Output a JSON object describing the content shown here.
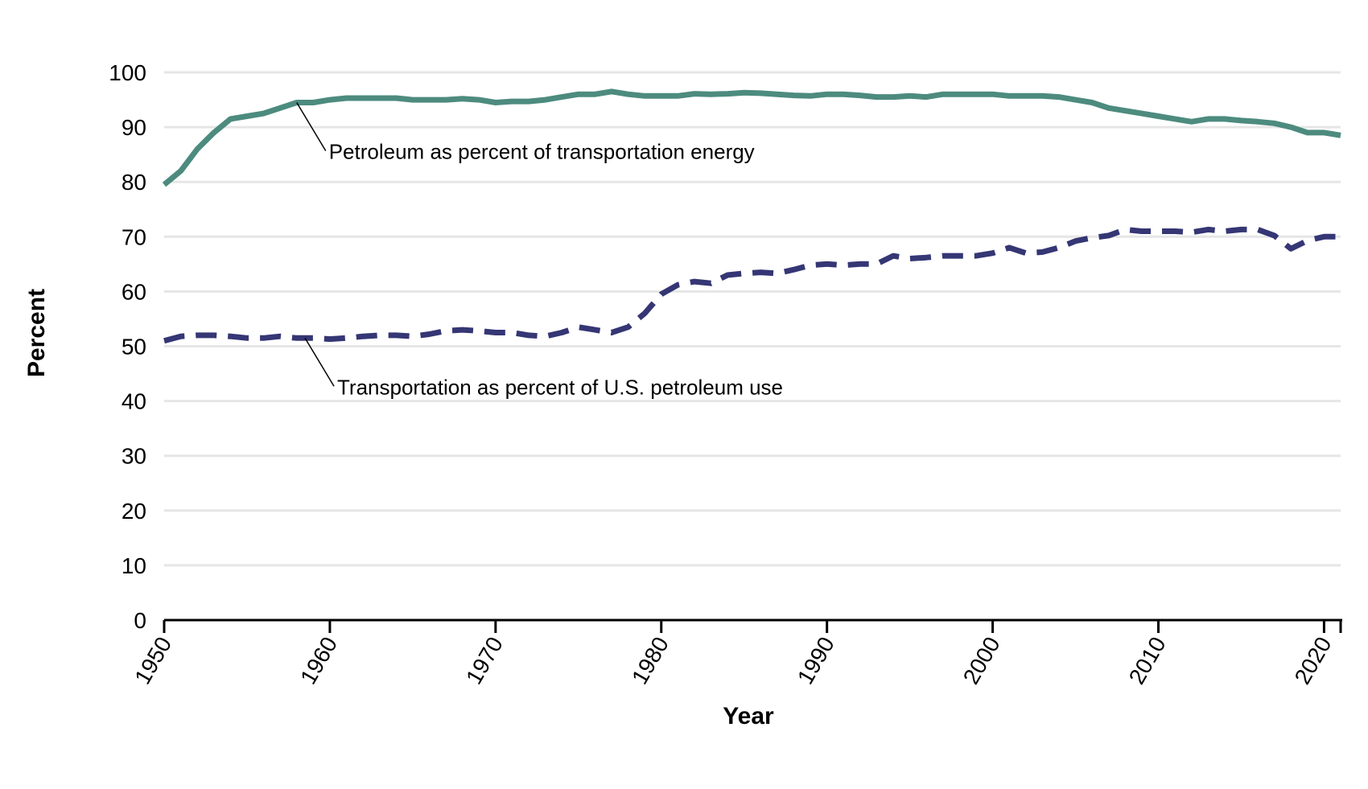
{
  "chart_data": {
    "type": "line",
    "title": "",
    "xlabel": "Year",
    "ylabel": "Percent",
    "xlim": [
      1950,
      2021
    ],
    "ylim": [
      0,
      100
    ],
    "x_ticks": [
      1950,
      1960,
      1970,
      1980,
      1990,
      2000,
      2010,
      2020
    ],
    "y_ticks": [
      0,
      10,
      20,
      30,
      40,
      50,
      60,
      70,
      80,
      90,
      100
    ],
    "grid": "horizontal",
    "series": [
      {
        "name": "Petroleum as percent of transportation energy",
        "color": "#4d8b7f",
        "style": "solid",
        "x": [
          1950,
          1951,
          1952,
          1953,
          1954,
          1955,
          1956,
          1957,
          1958,
          1959,
          1960,
          1961,
          1962,
          1963,
          1964,
          1965,
          1966,
          1967,
          1968,
          1969,
          1970,
          1971,
          1972,
          1973,
          1974,
          1975,
          1976,
          1977,
          1978,
          1979,
          1980,
          1981,
          1982,
          1983,
          1984,
          1985,
          1986,
          1987,
          1988,
          1989,
          1990,
          1991,
          1992,
          1993,
          1994,
          1995,
          1996,
          1997,
          1998,
          1999,
          2000,
          2001,
          2002,
          2003,
          2004,
          2005,
          2006,
          2007,
          2008,
          2009,
          2010,
          2011,
          2012,
          2013,
          2014,
          2015,
          2016,
          2017,
          2018,
          2019,
          2020,
          2021
        ],
        "y": [
          79.5,
          82,
          86,
          89,
          91.5,
          92,
          92.5,
          93.5,
          94.5,
          94.5,
          95,
          95.3,
          95.3,
          95.3,
          95.3,
          95,
          95,
          95,
          95.2,
          95,
          94.5,
          94.7,
          94.7,
          95,
          95.5,
          96,
          96,
          96.5,
          96,
          95.7,
          95.7,
          95.7,
          96.1,
          96,
          96.1,
          96.3,
          96.2,
          96,
          95.8,
          95.7,
          96,
          96,
          95.8,
          95.5,
          95.5,
          95.7,
          95.5,
          96,
          96,
          96,
          96,
          95.7,
          95.7,
          95.7,
          95.5,
          95,
          94.5,
          93.5,
          93,
          92.5,
          92,
          91.5,
          91,
          91.5,
          91.5,
          91.2,
          91,
          90.7,
          90,
          89,
          89,
          88.5
        ]
      },
      {
        "name": "Transportation as percent of U.S. petroleum use",
        "color": "#353674",
        "style": "dashed",
        "x": [
          1950,
          1951,
          1952,
          1953,
          1954,
          1955,
          1956,
          1957,
          1958,
          1959,
          1960,
          1961,
          1962,
          1963,
          1964,
          1965,
          1966,
          1967,
          1968,
          1969,
          1970,
          1971,
          1972,
          1973,
          1974,
          1975,
          1976,
          1977,
          1978,
          1979,
          1980,
          1981,
          1982,
          1983,
          1984,
          1985,
          1986,
          1987,
          1988,
          1989,
          1990,
          1991,
          1992,
          1993,
          1994,
          1995,
          1996,
          1997,
          1998,
          1999,
          2000,
          2001,
          2002,
          2003,
          2004,
          2005,
          2006,
          2007,
          2008,
          2009,
          2010,
          2011,
          2012,
          2013,
          2014,
          2015,
          2016,
          2017,
          2018,
          2019,
          2020,
          2021
        ],
        "y": [
          51,
          51.8,
          52,
          52,
          51.8,
          51.5,
          51.5,
          51.8,
          51.5,
          51.5,
          51.3,
          51.5,
          51.8,
          52,
          52,
          51.8,
          52.2,
          52.8,
          53,
          52.8,
          52.5,
          52.5,
          52,
          51.8,
          52.5,
          53.5,
          53,
          52.5,
          53.5,
          56,
          59.5,
          61.2,
          61.8,
          61.5,
          63,
          63.3,
          63.5,
          63.3,
          64,
          64.8,
          65,
          64.8,
          65,
          65,
          66.5,
          66,
          66.2,
          66.5,
          66.5,
          66.5,
          67,
          68,
          67,
          67.2,
          68,
          69.2,
          69.8,
          70.2,
          71.3,
          71,
          71,
          71,
          70.8,
          71.3,
          71,
          71.3,
          71.3,
          70.2,
          67.8,
          69.3,
          70,
          70
        ]
      }
    ],
    "annotations": [
      {
        "text": "Petroleum as percent of transportation energy",
        "series_index": 0,
        "point_x": 1958
      },
      {
        "text": "Transportation as percent of U.S. petroleum use",
        "series_index": 1,
        "point_x": 1958.5
      }
    ]
  }
}
